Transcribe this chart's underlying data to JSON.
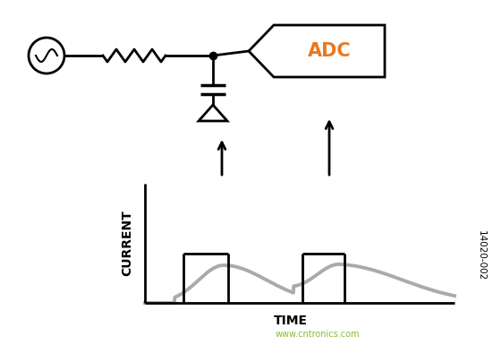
{
  "bg_color": "#ffffff",
  "fig_width": 5.51,
  "fig_height": 3.85,
  "dpi": 100,
  "adc_label": "ADC",
  "current_label": "CURRENT",
  "time_label": "TIME",
  "watermark": "www.cntronics.com",
  "ref_number": "14020-002",
  "line_color": "#000000",
  "gray_color": "#aaaaaa",
  "adc_text_color": "#e87820"
}
